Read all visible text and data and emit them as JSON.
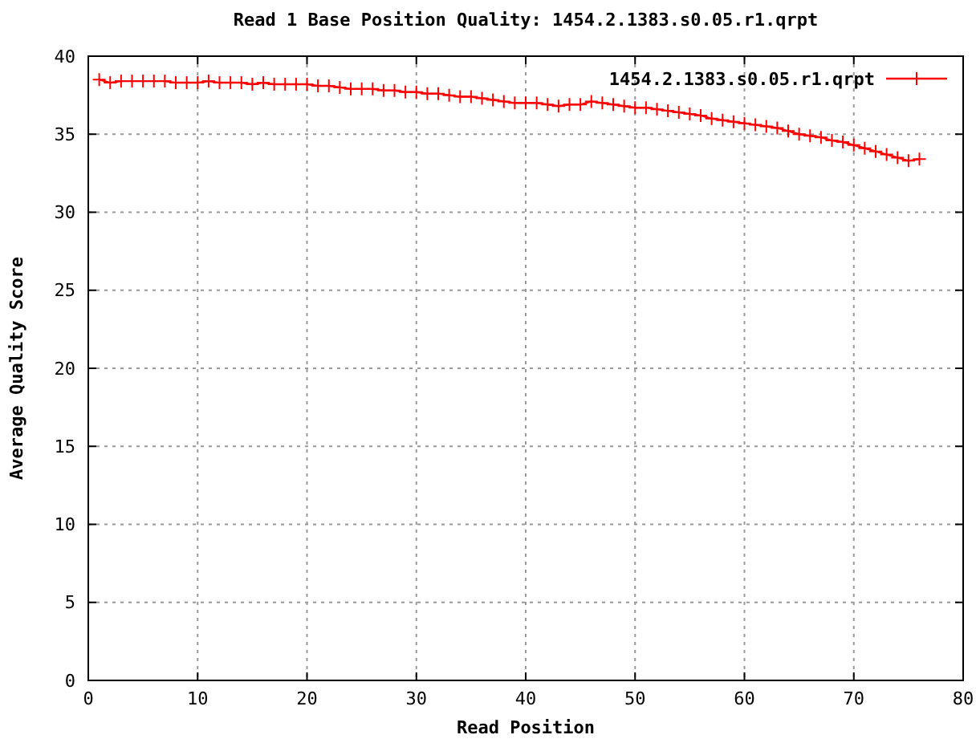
{
  "chart_data": {
    "type": "line",
    "title": "Read 1 Base Position Quality: 1454.2.1383.s0.05.r1.qrpt",
    "xlabel": "Read Position",
    "ylabel": "Average Quality Score",
    "x": [
      1,
      2,
      3,
      4,
      5,
      6,
      7,
      8,
      9,
      10,
      11,
      12,
      13,
      14,
      15,
      16,
      17,
      18,
      19,
      20,
      21,
      22,
      23,
      24,
      25,
      26,
      27,
      28,
      29,
      30,
      31,
      32,
      33,
      34,
      35,
      36,
      37,
      38,
      39,
      40,
      41,
      42,
      43,
      44,
      45,
      46,
      47,
      48,
      49,
      50,
      51,
      52,
      53,
      54,
      55,
      56,
      57,
      58,
      59,
      60,
      61,
      62,
      63,
      64,
      65,
      66,
      67,
      68,
      69,
      70,
      71,
      72,
      73,
      74,
      75,
      76
    ],
    "series": [
      {
        "name": "1454.2.1383.s0.05.r1.qrpt",
        "color": "#ff0000",
        "values": [
          38.5,
          38.3,
          38.4,
          38.4,
          38.4,
          38.4,
          38.4,
          38.3,
          38.3,
          38.3,
          38.4,
          38.3,
          38.3,
          38.3,
          38.2,
          38.3,
          38.2,
          38.2,
          38.2,
          38.2,
          38.1,
          38.1,
          38.0,
          37.9,
          37.9,
          37.9,
          37.8,
          37.8,
          37.7,
          37.7,
          37.6,
          37.6,
          37.5,
          37.4,
          37.4,
          37.3,
          37.2,
          37.1,
          37.0,
          37.0,
          37.0,
          36.9,
          36.8,
          36.9,
          36.9,
          37.1,
          37.0,
          36.9,
          36.8,
          36.7,
          36.7,
          36.6,
          36.5,
          36.4,
          36.3,
          36.2,
          36.0,
          35.9,
          35.8,
          35.7,
          35.6,
          35.5,
          35.4,
          35.2,
          35.0,
          34.9,
          34.8,
          34.6,
          34.5,
          34.3,
          34.1,
          33.9,
          33.7,
          33.5,
          33.3,
          33.4
        ]
      }
    ],
    "xlim": [
      0,
      80
    ],
    "ylim": [
      0,
      40
    ],
    "xticks": [
      0,
      10,
      20,
      30,
      40,
      50,
      60,
      70,
      80
    ],
    "yticks": [
      0,
      5,
      10,
      15,
      20,
      25,
      30,
      35,
      40
    ],
    "grid": true,
    "legend": "top right",
    "marker": "cross",
    "line_style": "solid"
  }
}
